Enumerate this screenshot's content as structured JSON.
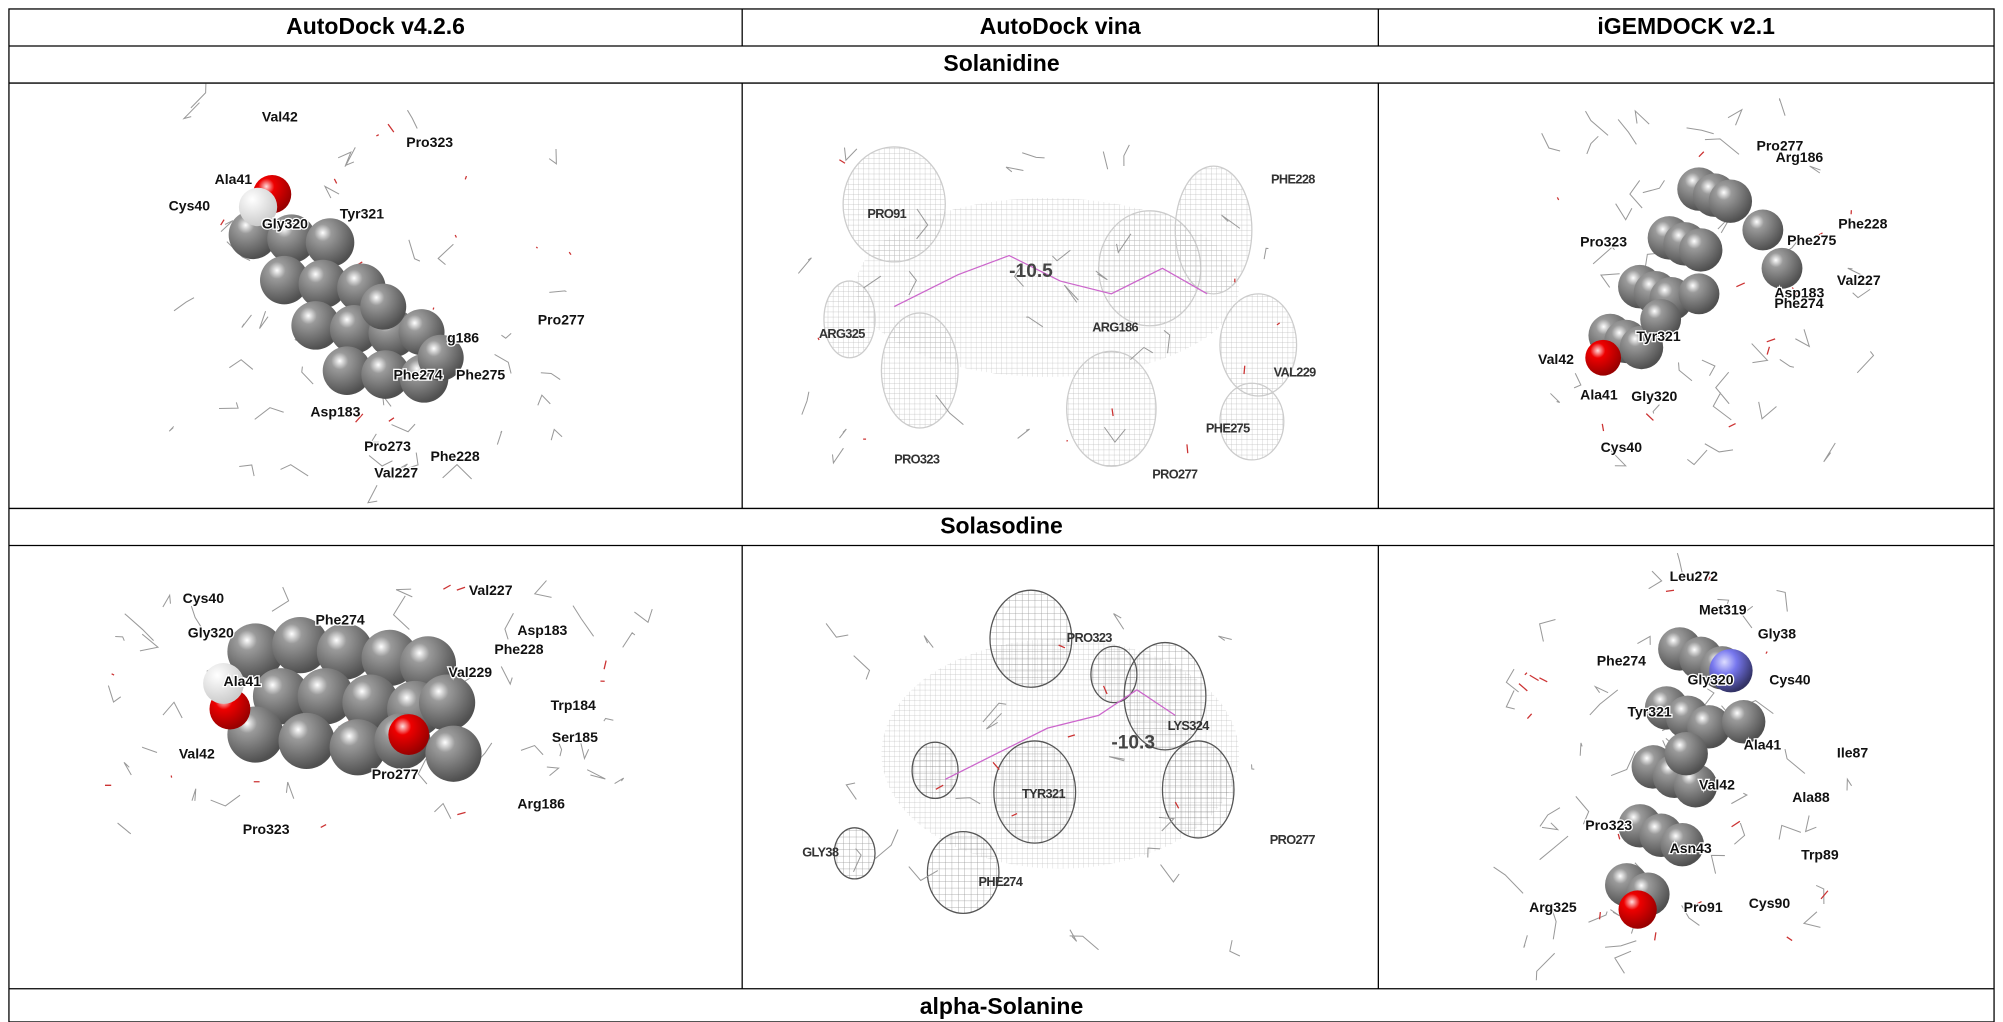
{
  "table": {
    "header": [
      "AutoDock v4.2.6",
      "AutoDock vina",
      "iGEMDOCK v2.1"
    ],
    "sections": [
      {
        "title": "Solanidine",
        "panels": [
          [
            "Val42",
            "Pro323",
            "Ala41",
            "Cys40",
            "Gly320",
            "Tyr321",
            "g186",
            "Pro277",
            "Phe274",
            "Phe275",
            "Asp183",
            "Pro273",
            "Phe228",
            "Val227"
          ],
          [
            "PRO91",
            "-10.5",
            "PHE228",
            "ARG325",
            "ARG186",
            "VAL229",
            "PHE275",
            "PRO323",
            "PRO277"
          ],
          [
            "Pro277",
            "Arg186",
            "Phe228",
            "Phe275",
            "Pro323",
            "Val227",
            "Asp183",
            "Phe274",
            "Tyr321",
            "Val42",
            "Ala41",
            "Gly320",
            "Cys40"
          ]
        ]
      },
      {
        "title": "Solasodine",
        "panels": [
          [
            "Cys40",
            "Val227",
            "Gly320",
            "Phe274",
            "Asp183",
            "Phe228",
            "Val229",
            "Ala41",
            "Trp184",
            "Ser185",
            "Val42",
            "Pro277",
            "Arg186",
            "Pro323"
          ],
          [
            "PRO323",
            "LYS324",
            "-10.3",
            "TYR321",
            "PRO277",
            "GLY38",
            "PHE274"
          ],
          [
            "Leu272",
            "Met319",
            "Gly38",
            "Phe274",
            "Gly320",
            "Cys40",
            "Tyr321",
            "Ala41",
            "Ile87",
            "Val42",
            "Ala88",
            "Pro323",
            "Asn43",
            "Trp89",
            "Arg325",
            "Pro91",
            "Cys90"
          ]
        ]
      },
      {
        "title": "alpha-Solanine"
      }
    ]
  }
}
